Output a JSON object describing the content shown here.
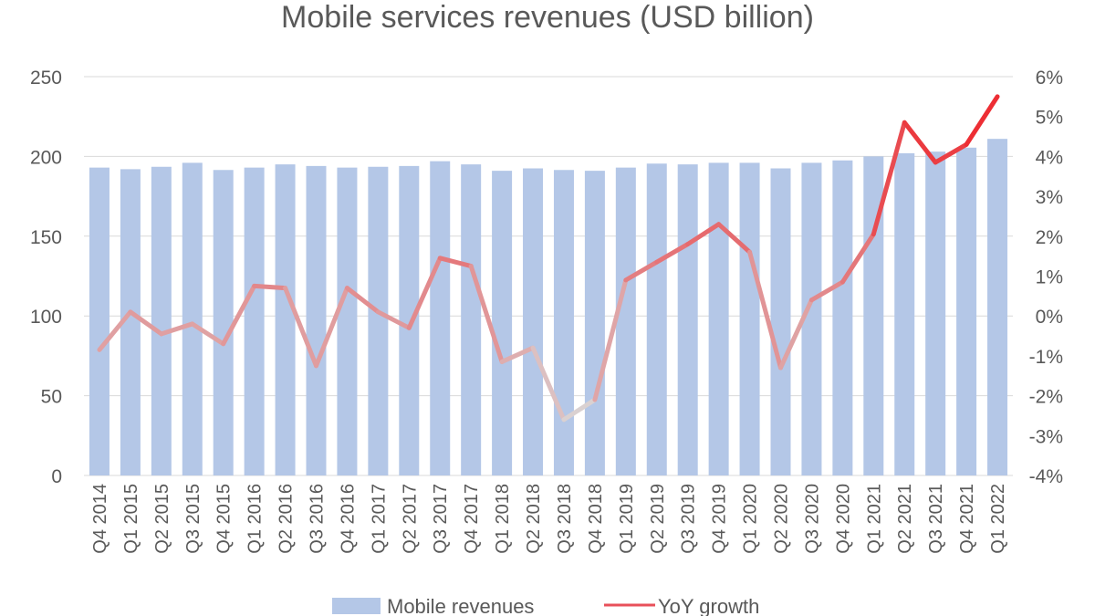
{
  "chart_data": {
    "type": "bar+line",
    "title": "Mobile services revenues (USD billion)",
    "categories": [
      "Q4 2014",
      "Q1 2015",
      "Q2 2015",
      "Q3 2015",
      "Q4 2015",
      "Q1 2016",
      "Q2 2016",
      "Q3 2016",
      "Q4 2016",
      "Q1 2017",
      "Q2 2017",
      "Q3 2017",
      "Q4 2017",
      "Q1 2018",
      "Q2 2018",
      "Q3 2018",
      "Q4 2018",
      "Q1 2019",
      "Q2 2019",
      "Q3 2019",
      "Q4 2019",
      "Q1 2020",
      "Q2 2020",
      "Q3 2020",
      "Q4 2020",
      "Q1 2021",
      "Q2 2021",
      "Q3 2021",
      "Q4 2021",
      "Q1 2022"
    ],
    "series": [
      {
        "name": "Mobile revenues",
        "type": "bar",
        "axis": "left",
        "color": "#b4c7e7",
        "values": [
          193,
          192,
          193.5,
          196,
          191.5,
          193,
          195,
          194,
          193,
          193.5,
          194,
          197,
          195,
          191,
          192.5,
          191.5,
          191,
          193,
          195.5,
          195,
          196,
          196,
          192.5,
          196,
          197.5,
          200,
          202,
          203,
          205.5,
          211
        ]
      },
      {
        "name": "YoY growth",
        "type": "line",
        "axis": "right",
        "unit": "%",
        "color": "#ee2a2a",
        "values": [
          -0.85,
          0.1,
          -0.45,
          -0.2,
          -0.7,
          0.75,
          0.7,
          -1.25,
          0.7,
          0.1,
          -0.3,
          1.45,
          1.25,
          -1.15,
          -0.8,
          -2.6,
          -2.1,
          0.9,
          1.35,
          1.8,
          2.3,
          1.6,
          -1.3,
          0.4,
          0.85,
          2.05,
          4.85,
          3.85,
          4.3,
          5.5
        ]
      }
    ],
    "y_left": {
      "range": [
        0,
        250
      ],
      "ticks": [
        "0",
        "50",
        "100",
        "150",
        "200",
        "250"
      ]
    },
    "y_right": {
      "range": [
        -4,
        6
      ],
      "ticks": [
        "-4%",
        "-3%",
        "-2%",
        "-1%",
        "0%",
        "1%",
        "2%",
        "3%",
        "4%",
        "5%",
        "6%"
      ]
    },
    "grid": true,
    "legend": "bottom"
  }
}
